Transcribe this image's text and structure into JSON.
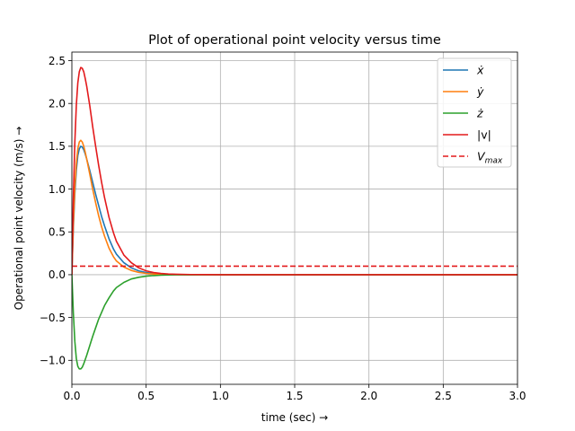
{
  "chart_data": {
    "type": "line",
    "title": "Plot of operational point velocity versus time",
    "xlabel": "time (sec) →",
    "ylabel": "Operational point velocity (m/s) →",
    "xlim": [
      0,
      3.0
    ],
    "ylim": [
      -1.28,
      2.6
    ],
    "xticks": [
      0.0,
      0.5,
      1.0,
      1.5,
      2.0,
      2.5,
      3.0
    ],
    "xtick_labels": [
      "0.0",
      "0.5",
      "1.0",
      "1.5",
      "2.0",
      "2.5",
      "3.0"
    ],
    "yticks": [
      -1.0,
      -0.5,
      0.0,
      0.5,
      1.0,
      1.5,
      2.0,
      2.5
    ],
    "ytick_labels": [
      "−1.0",
      "−0.5",
      "0.0",
      "0.5",
      "1.0",
      "1.5",
      "2.0",
      "2.5"
    ],
    "grid": true,
    "legend_position": "top-right",
    "series": [
      {
        "name": "ẋ",
        "color": "#1f77b4",
        "style": "solid",
        "x": [
          0,
          0.01,
          0.02,
          0.03,
          0.04,
          0.05,
          0.06,
          0.07,
          0.08,
          0.09,
          0.1,
          0.12,
          0.14,
          0.16,
          0.18,
          0.2,
          0.22,
          0.25,
          0.28,
          0.3,
          0.35,
          0.4,
          0.45,
          0.5,
          0.55,
          0.6,
          0.65,
          0.7,
          0.8,
          0.9,
          1.0,
          1.2,
          1.5,
          2.0,
          2.5,
          3.0
        ],
        "y": [
          0,
          0.55,
          0.95,
          1.22,
          1.39,
          1.47,
          1.5,
          1.49,
          1.46,
          1.41,
          1.35,
          1.22,
          1.08,
          0.94,
          0.81,
          0.68,
          0.57,
          0.42,
          0.3,
          0.24,
          0.14,
          0.08,
          0.045,
          0.025,
          0.014,
          0.008,
          0.004,
          0.002,
          0.001,
          0,
          0,
          0,
          0,
          0,
          0,
          0
        ]
      },
      {
        "name": "ẏ",
        "color": "#ff7f0e",
        "style": "solid",
        "x": [
          0,
          0.01,
          0.02,
          0.03,
          0.04,
          0.05,
          0.06,
          0.07,
          0.08,
          0.09,
          0.1,
          0.12,
          0.14,
          0.16,
          0.18,
          0.2,
          0.22,
          0.25,
          0.28,
          0.3,
          0.35,
          0.4,
          0.45,
          0.5,
          0.55,
          0.6,
          0.65,
          0.7,
          0.8,
          0.9,
          1.0,
          1.2,
          1.5,
          2.0,
          2.5,
          3.0
        ],
        "y": [
          0,
          0.6,
          1.02,
          1.3,
          1.47,
          1.55,
          1.57,
          1.55,
          1.5,
          1.43,
          1.35,
          1.18,
          1.0,
          0.84,
          0.69,
          0.56,
          0.45,
          0.31,
          0.21,
          0.16,
          0.09,
          0.05,
          0.027,
          0.015,
          0.008,
          0.004,
          0.002,
          0.001,
          0,
          0,
          0,
          0,
          0,
          0,
          0,
          0
        ]
      },
      {
        "name": "ż",
        "color": "#2ca02c",
        "style": "solid",
        "x": [
          0,
          0.01,
          0.02,
          0.03,
          0.04,
          0.05,
          0.06,
          0.07,
          0.08,
          0.09,
          0.1,
          0.12,
          0.14,
          0.16,
          0.18,
          0.2,
          0.22,
          0.25,
          0.28,
          0.3,
          0.35,
          0.4,
          0.45,
          0.5,
          0.55,
          0.6,
          0.65,
          0.7,
          0.8,
          0.9,
          1.0,
          1.2,
          1.5,
          2.0,
          2.5,
          3.0
        ],
        "y": [
          0,
          -0.45,
          -0.78,
          -0.98,
          -1.07,
          -1.1,
          -1.1,
          -1.08,
          -1.04,
          -0.99,
          -0.94,
          -0.83,
          -0.72,
          -0.62,
          -0.52,
          -0.44,
          -0.36,
          -0.27,
          -0.19,
          -0.15,
          -0.09,
          -0.05,
          -0.03,
          -0.017,
          -0.01,
          -0.006,
          -0.003,
          -0.002,
          -0.001,
          0,
          0,
          0,
          0,
          0,
          0,
          0
        ]
      },
      {
        "name": "|v|",
        "color": "#e31a1c",
        "style": "solid",
        "x": [
          0,
          0.01,
          0.02,
          0.03,
          0.04,
          0.05,
          0.06,
          0.07,
          0.08,
          0.09,
          0.1,
          0.12,
          0.14,
          0.16,
          0.18,
          0.2,
          0.22,
          0.25,
          0.28,
          0.3,
          0.35,
          0.4,
          0.45,
          0.5,
          0.55,
          0.6,
          0.65,
          0.7,
          0.8,
          0.9,
          1.0,
          1.2,
          1.5,
          2.0,
          2.5,
          3.0
        ],
        "y": [
          0,
          0.9,
          1.55,
          1.98,
          2.24,
          2.37,
          2.42,
          2.41,
          2.37,
          2.29,
          2.2,
          1.98,
          1.73,
          1.5,
          1.28,
          1.08,
          0.9,
          0.67,
          0.49,
          0.39,
          0.23,
          0.14,
          0.08,
          0.045,
          0.025,
          0.014,
          0.008,
          0.005,
          0.002,
          0.001,
          0,
          0,
          0,
          0,
          0,
          0
        ]
      },
      {
        "name": "V_max",
        "color": "#e31a1c",
        "style": "dashed",
        "x": [
          0,
          3.0
        ],
        "y": [
          0.1,
          0.1
        ]
      }
    ]
  }
}
